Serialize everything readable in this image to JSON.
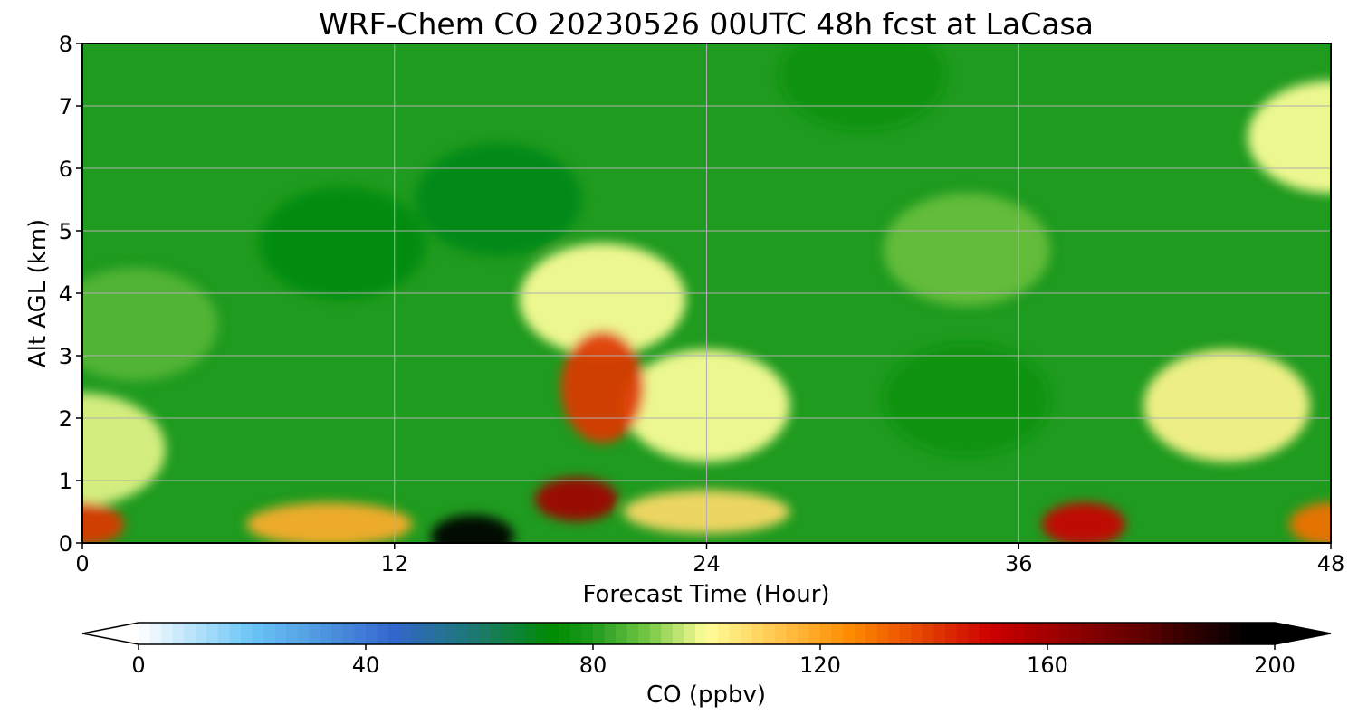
{
  "chart_data": {
    "type": "heatmap",
    "title": "WRF-Chem CO  20230526 00UTC 48h fcst at LaCasa",
    "xlabel": "Forecast Time (Hour)",
    "ylabel": "Alt AGL (km)",
    "xlim": [
      0,
      48
    ],
    "ylim": [
      0,
      8
    ],
    "x_ticks": [
      0,
      12,
      24,
      36,
      48
    ],
    "y_ticks": [
      0,
      1,
      2,
      3,
      4,
      5,
      6,
      7,
      8
    ],
    "grid": true,
    "colorbar": {
      "label": "CO  (ppbv)",
      "vmin": 0,
      "vmax": 200,
      "ticks": [
        0,
        40,
        80,
        120,
        160,
        200
      ],
      "extend": "both",
      "colors": [
        {
          "value": 0,
          "color": "#ffffff"
        },
        {
          "value": 20,
          "color": "#6ac5f5"
        },
        {
          "value": 45,
          "color": "#3366cc"
        },
        {
          "value": 60,
          "color": "#1a7a6a"
        },
        {
          "value": 73,
          "color": "#008c00"
        },
        {
          "value": 80,
          "color": "#1f9b1f"
        },
        {
          "value": 90,
          "color": "#7ac846"
        },
        {
          "value": 100,
          "color": "#ffff99"
        },
        {
          "value": 125,
          "color": "#ff8c00"
        },
        {
          "value": 150,
          "color": "#cc0000"
        },
        {
          "value": 175,
          "color": "#660000"
        },
        {
          "value": 195,
          "color": "#000000"
        }
      ],
      "under_color": "#ffffff",
      "over_color": "#000000"
    },
    "features": [
      {
        "x": 0,
        "altitude": 0.3,
        "co_ppbv": 140
      },
      {
        "x": 0,
        "altitude": 1.5,
        "co_ppbv": 98
      },
      {
        "x": 2,
        "altitude": 3.5,
        "co_ppbv": 86
      },
      {
        "x": 9.5,
        "altitude": 0.3,
        "co_ppbv": 118
      },
      {
        "x": 15,
        "altitude": 0.1,
        "co_ppbv": 198
      },
      {
        "x": 19,
        "altitude": 0.7,
        "co_ppbv": 160
      },
      {
        "x": 20,
        "altitude": 2.5,
        "co_ppbv": 140
      },
      {
        "x": 20,
        "altitude": 3.9,
        "co_ppbv": 100
      },
      {
        "x": 16,
        "altitude": 5.5,
        "co_ppbv": 70
      },
      {
        "x": 10,
        "altitude": 4.8,
        "co_ppbv": 72
      },
      {
        "x": 24,
        "altitude": 2.2,
        "co_ppbv": 100
      },
      {
        "x": 24,
        "altitude": 0.5,
        "co_ppbv": 108
      },
      {
        "x": 34,
        "altitude": 4.7,
        "co_ppbv": 88
      },
      {
        "x": 34,
        "altitude": 2.3,
        "co_ppbv": 76
      },
      {
        "x": 38.5,
        "altitude": 0.3,
        "co_ppbv": 150
      },
      {
        "x": 44,
        "altitude": 2.2,
        "co_ppbv": 102
      },
      {
        "x": 48,
        "altitude": 0.3,
        "co_ppbv": 130
      },
      {
        "x": 48,
        "altitude": 6.5,
        "co_ppbv": 100
      },
      {
        "x": 30,
        "altitude": 7.5,
        "co_ppbv": 76
      }
    ]
  }
}
